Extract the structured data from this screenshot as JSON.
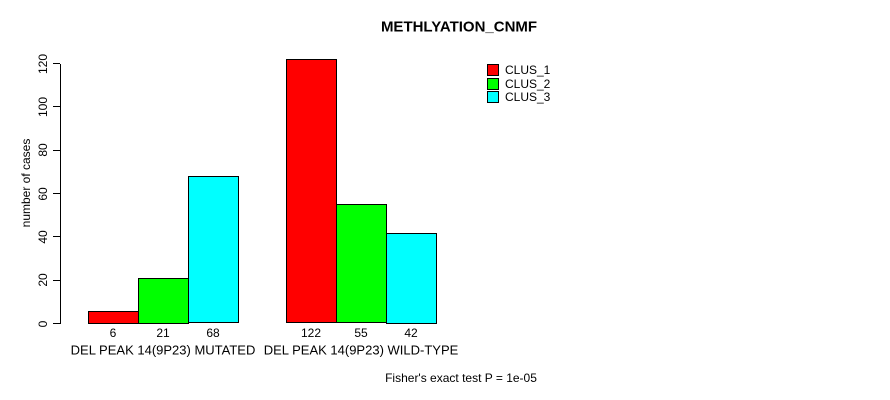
{
  "chart_data": {
    "type": "bar",
    "title": "METHLYATION_CNMF",
    "ylabel": "number of cases",
    "xlabel": "",
    "ylim": [
      0,
      120
    ],
    "yticks": [
      0,
      20,
      40,
      60,
      80,
      100,
      120
    ],
    "grid": false,
    "legend_position": "top-right",
    "categories": [
      "DEL PEAK 14(9P23) MUTATED",
      "DEL PEAK 14(9P23) WILD-TYPE"
    ],
    "series": [
      {
        "name": "CLUS_1",
        "color": "#FF0000",
        "values": [
          6,
          122
        ]
      },
      {
        "name": "CLUS_2",
        "color": "#00FF00",
        "values": [
          21,
          55
        ]
      },
      {
        "name": "CLUS_3",
        "color": "#00FFFF",
        "values": [
          68,
          42
        ]
      }
    ],
    "bar_value_labels": [
      [
        6,
        21,
        68
      ],
      [
        122,
        55,
        42
      ]
    ],
    "annotation": "Fisher's exact test P = 1e-05",
    "colors": {
      "bar_border": "#000000",
      "text": "#000000",
      "background": "#FFFFFF"
    }
  }
}
